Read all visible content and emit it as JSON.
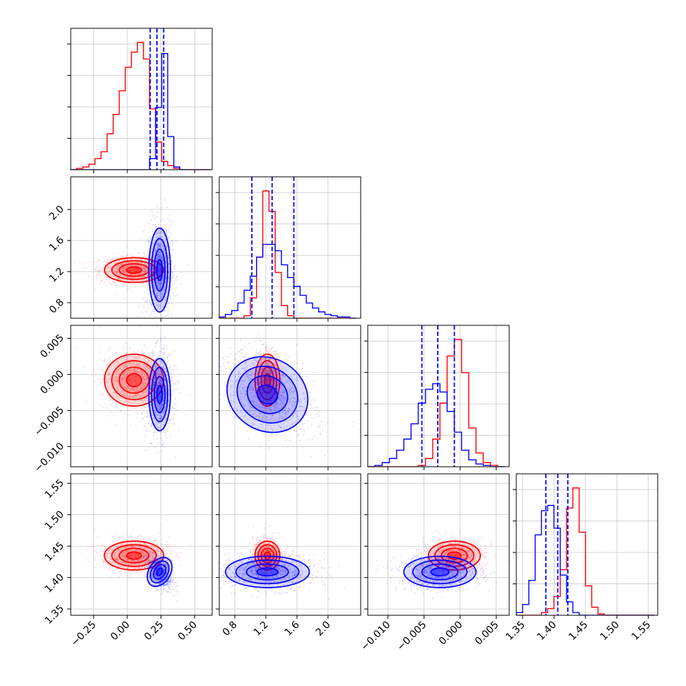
{
  "figure": {
    "kind": "corner-plot",
    "grid": true,
    "colors": {
      "red": "#ff0000",
      "blue": "#0000ff"
    }
  },
  "chart_data": {
    "type": "corner",
    "parameters": [
      {
        "range": [
          -0.42,
          0.63
        ],
        "ticks": [
          -0.25,
          0.0,
          0.25,
          0.5
        ],
        "tick_labels": [
          "−0.25",
          "0.00",
          "0.25",
          "0.50"
        ]
      },
      {
        "range": [
          0.6,
          2.42
        ],
        "ticks": [
          0.8,
          1.2,
          1.6,
          2.0
        ],
        "tick_labels": [
          "0.8",
          "1.2",
          "1.6",
          "2.0"
        ]
      },
      {
        "range": [
          -0.0128,
          0.0068
        ],
        "ticks": [
          -0.01,
          -0.005,
          0.0,
          0.005
        ],
        "tick_labels": [
          "−0.010",
          "−0.005",
          "0.000",
          "0.005"
        ]
      },
      {
        "range": [
          1.34,
          1.565
        ],
        "ticks": [
          1.35,
          1.4,
          1.45,
          1.5,
          1.55
        ],
        "tick_labels": [
          "1.35",
          "1.40",
          "1.45",
          "1.50",
          "1.55"
        ]
      }
    ],
    "series": [
      {
        "color": "red",
        "mean": [
          0.05,
          1.22,
          -0.0008,
          1.435
        ],
        "std": [
          0.11,
          0.08,
          0.0018,
          0.0115
        ]
      },
      {
        "color": "blue",
        "mean": [
          0.24,
          1.22,
          -0.0028,
          1.409
        ],
        "std": [
          0.04,
          0.27,
          0.0025,
          0.0125
        ]
      }
    ],
    "quantile_lines": {
      "color": "blue",
      "values": [
        [
          0.17,
          0.22,
          0.27
        ],
        [
          1.02,
          1.28,
          1.56
        ],
        [
          -0.0053,
          -0.0031,
          -0.0008
        ],
        [
          1.387,
          1.406,
          1.422
        ]
      ]
    },
    "histograms": [
      {
        "bin_edges": [
          -0.42,
          -0.375,
          -0.33,
          -0.285,
          -0.24,
          -0.195,
          -0.15,
          -0.105,
          -0.06,
          -0.015,
          0.03,
          0.075,
          0.12,
          0.165,
          0.21,
          0.255,
          0.3,
          0.345,
          0.39,
          0.435,
          0.48,
          0.525,
          0.57,
          0.615
        ],
        "red": [
          0,
          1,
          2,
          4,
          8,
          13,
          26,
          40,
          57,
          74,
          85,
          92,
          80,
          44,
          20,
          6,
          3,
          1,
          0,
          0,
          0,
          0,
          0
        ],
        "blue": [
          0,
          0,
          0,
          0,
          0,
          0,
          0,
          0,
          0,
          0,
          0,
          0,
          0,
          8,
          45,
          84,
          24,
          2,
          0,
          0,
          0,
          0,
          0
        ]
      },
      {
        "bin_edges": [
          0.6,
          0.68,
          0.76,
          0.84,
          0.92,
          1.0,
          1.08,
          1.16,
          1.24,
          1.32,
          1.4,
          1.48,
          1.56,
          1.64,
          1.72,
          1.8,
          1.88,
          1.96,
          2.04,
          2.12,
          2.2,
          2.28,
          2.36
        ],
        "red": [
          0,
          0,
          0,
          0,
          2,
          16,
          48,
          100,
          84,
          36,
          10,
          2,
          0,
          0,
          0,
          0,
          0,
          0,
          0,
          0,
          0,
          0
        ],
        "blue": [
          1,
          3,
          6,
          12,
          22,
          33,
          48,
          58,
          58,
          53,
          42,
          32,
          25,
          18,
          12,
          8,
          5,
          3,
          2,
          1,
          1,
          0
        ]
      },
      {
        "bin_edges": [
          -0.0128,
          -0.0118,
          -0.0108,
          -0.0098,
          -0.0088,
          -0.0078,
          -0.0068,
          -0.0058,
          -0.0048,
          -0.0038,
          -0.0028,
          -0.0018,
          -0.0008,
          0.0002,
          0.0012,
          0.0022,
          0.0032,
          0.0042,
          0.0052,
          0.0062
        ],
        "red": [
          0,
          0,
          0,
          0,
          0,
          0,
          0,
          1,
          6,
          20,
          46,
          80,
          92,
          68,
          28,
          10,
          3,
          1,
          0
        ],
        "blue": [
          0,
          1,
          3,
          6,
          12,
          20,
          31,
          46,
          56,
          60,
          54,
          40,
          25,
          12,
          5,
          2,
          1,
          0,
          0
        ]
      },
      {
        "bin_edges": [
          1.34,
          1.35,
          1.36,
          1.37,
          1.38,
          1.39,
          1.4,
          1.41,
          1.42,
          1.43,
          1.44,
          1.45,
          1.46,
          1.47,
          1.48,
          1.49,
          1.5,
          1.51,
          1.52,
          1.53,
          1.54,
          1.55,
          1.56
        ],
        "red": [
          0,
          0,
          0,
          0,
          2,
          5,
          14,
          34,
          80,
          95,
          62,
          22,
          6,
          1,
          0,
          0,
          0,
          0,
          0,
          0,
          0,
          0
        ],
        "blue": [
          2,
          8,
          26,
          60,
          78,
          82,
          65,
          30,
          10,
          2,
          0,
          0,
          0,
          0,
          0,
          0,
          0,
          0,
          0,
          0,
          0,
          0
        ]
      }
    ]
  }
}
